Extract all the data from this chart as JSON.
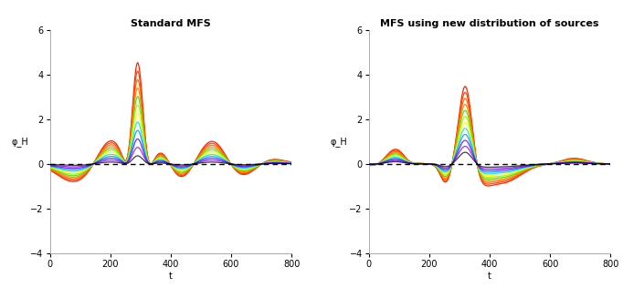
{
  "title_left": "Standard MFS",
  "title_right": "MFS using new distribution of sources",
  "xlabel": "t",
  "ylabel_left": "φ_H",
  "ylabel_right": "φ_H",
  "xlim": [
    0,
    800
  ],
  "ylim": [
    -4,
    6
  ],
  "yticks": [
    -4,
    -2,
    0,
    2,
    4,
    6
  ],
  "xticks": [
    0,
    200,
    400,
    600,
    800
  ],
  "background_color": "#ffffff",
  "n_points": 801,
  "colors_outer_to_inner": [
    "#ff2200",
    "#ff4400",
    "#ff6600",
    "#ff8800",
    "#44dd00",
    "#aaee00",
    "#ffff00",
    "#00dddd",
    "#0088ff",
    "#4400ff",
    "#8800cc",
    "#000000"
  ],
  "title_fontsize": 8,
  "label_fontsize": 7,
  "tick_fontsize": 7,
  "lw": 0.9
}
